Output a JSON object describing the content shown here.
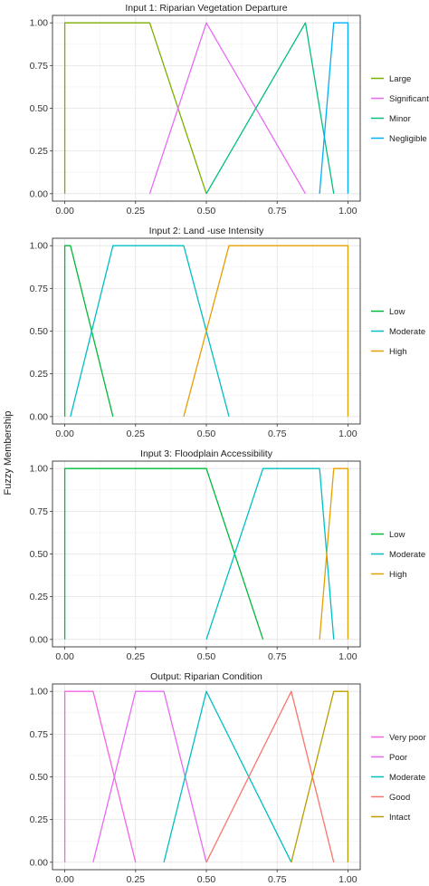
{
  "figure": {
    "ylabel": "Fuzzy Membership"
  },
  "chart_data": [
    {
      "type": "line",
      "title": "Input 1: Riparian Vegetation Departure",
      "xlim": [
        0,
        1
      ],
      "ylim": [
        0,
        1
      ],
      "xticks": [
        "0.00",
        "0.25",
        "0.50",
        "0.75",
        "1.00"
      ],
      "yticks": [
        "0.00",
        "0.25",
        "0.50",
        "0.75",
        "1.00"
      ],
      "grid": true,
      "legend_position": "right",
      "series": [
        {
          "name": "Large",
          "color": "#7cae00",
          "points": [
            [
              0,
              0
            ],
            [
              0,
              1
            ],
            [
              0.3,
              1
            ],
            [
              0.5,
              0
            ]
          ]
        },
        {
          "name": "Significant",
          "color": "#e76bf3",
          "points": [
            [
              0.3,
              0
            ],
            [
              0.5,
              1
            ],
            [
              0.85,
              0
            ]
          ]
        },
        {
          "name": "Minor",
          "color": "#00bf7d",
          "points": [
            [
              0.5,
              0
            ],
            [
              0.85,
              1
            ],
            [
              0.95,
              0
            ]
          ]
        },
        {
          "name": "Negligible",
          "color": "#00b0f6",
          "points": [
            [
              0.9,
              0
            ],
            [
              0.95,
              1
            ],
            [
              1,
              1
            ],
            [
              1,
              0
            ]
          ]
        }
      ]
    },
    {
      "type": "line",
      "title": "Input 2: Land -use Intensity",
      "xlim": [
        0,
        1
      ],
      "ylim": [
        0,
        1
      ],
      "xticks": [
        "0.00",
        "0.25",
        "0.50",
        "0.75",
        "1.00"
      ],
      "yticks": [
        "0.00",
        "0.25",
        "0.50",
        "0.75",
        "1.00"
      ],
      "grid": true,
      "legend_position": "right",
      "series": [
        {
          "name": "Low",
          "color": "#00ba38",
          "points": [
            [
              0,
              0
            ],
            [
              0,
              1
            ],
            [
              0.02,
              1
            ],
            [
              0.17,
              0
            ]
          ]
        },
        {
          "name": "Moderate",
          "color": "#00bfc4",
          "points": [
            [
              0.02,
              0
            ],
            [
              0.17,
              1
            ],
            [
              0.42,
              1
            ],
            [
              0.58,
              0
            ]
          ]
        },
        {
          "name": "High",
          "color": "#e69f00",
          "points": [
            [
              0.42,
              0
            ],
            [
              0.58,
              1
            ],
            [
              1,
              1
            ],
            [
              1,
              0
            ]
          ]
        }
      ]
    },
    {
      "type": "line",
      "title": "Input 3: Floodplain Accessibility",
      "xlim": [
        0,
        1
      ],
      "ylim": [
        0,
        1
      ],
      "xticks": [
        "0.00",
        "0.25",
        "0.50",
        "0.75",
        "1.00"
      ],
      "yticks": [
        "0.00",
        "0.25",
        "0.50",
        "0.75",
        "1.00"
      ],
      "grid": true,
      "legend_position": "right",
      "series": [
        {
          "name": "Low",
          "color": "#00ba38",
          "points": [
            [
              0,
              0
            ],
            [
              0,
              1
            ],
            [
              0.5,
              1
            ],
            [
              0.7,
              0
            ]
          ]
        },
        {
          "name": "Moderate",
          "color": "#00bfc4",
          "points": [
            [
              0.5,
              0
            ],
            [
              0.7,
              1
            ],
            [
              0.9,
              1
            ],
            [
              0.95,
              0
            ]
          ]
        },
        {
          "name": "High",
          "color": "#e69f00",
          "points": [
            [
              0.9,
              0
            ],
            [
              0.95,
              1
            ],
            [
              1,
              1
            ],
            [
              1,
              0
            ]
          ]
        }
      ]
    },
    {
      "type": "line",
      "title": "Output: Riparian Condition",
      "xlim": [
        0,
        1
      ],
      "ylim": [
        0,
        1
      ],
      "xticks": [
        "0.00",
        "0.25",
        "0.50",
        "0.75",
        "1.00"
      ],
      "yticks": [
        "0.00",
        "0.25",
        "0.50",
        "0.75",
        "1.00"
      ],
      "grid": true,
      "legend_position": "right",
      "series": [
        {
          "name": "Very poor",
          "color": "#f564e3",
          "points": [
            [
              0,
              0
            ],
            [
              0,
              1
            ],
            [
              0.1,
              1
            ],
            [
              0.25,
              0
            ]
          ]
        },
        {
          "name": "Poor",
          "color": "#e76bf3",
          "points": [
            [
              0.1,
              0
            ],
            [
              0.25,
              1
            ],
            [
              0.35,
              1
            ],
            [
              0.5,
              0
            ]
          ]
        },
        {
          "name": "Moderate",
          "color": "#00bfc4",
          "points": [
            [
              0.35,
              0
            ],
            [
              0.5,
              1
            ],
            [
              0.8,
              0
            ]
          ]
        },
        {
          "name": "Good",
          "color": "#f8766d",
          "points": [
            [
              0.5,
              0
            ],
            [
              0.8,
              1
            ],
            [
              0.95,
              0
            ]
          ]
        },
        {
          "name": "Intact",
          "color": "#b79f00",
          "points": [
            [
              0.8,
              0
            ],
            [
              0.95,
              1
            ],
            [
              1,
              1
            ],
            [
              1,
              0
            ]
          ]
        }
      ]
    }
  ]
}
